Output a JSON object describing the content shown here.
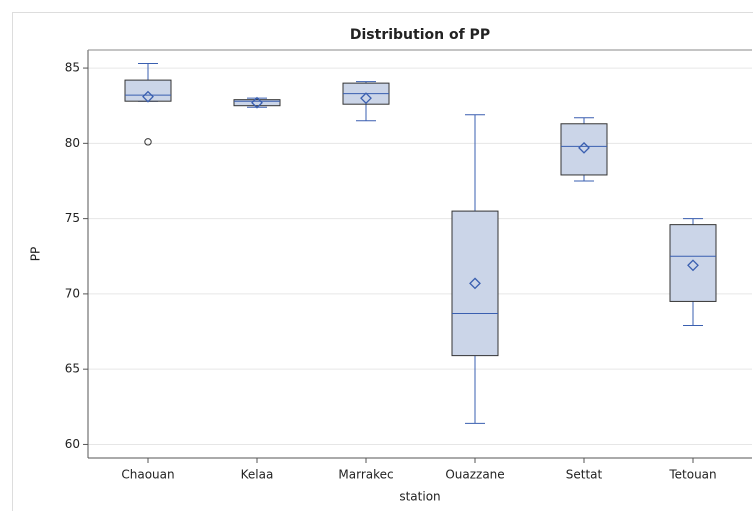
{
  "chart_data": {
    "type": "box",
    "title": "Distribution of PP",
    "x_label": "station",
    "y_label": "PP",
    "categories": [
      "Chaouan",
      "Kelaa",
      "Marrakec",
      "Ouazzane",
      "Settat",
      "Tetouan"
    ],
    "boxes": [
      {
        "whisker_low": 82.8,
        "q1": 82.8,
        "median": 83.2,
        "q3": 84.2,
        "whisker_high": 85.3,
        "mean": 83.1,
        "outliers": [
          80.1
        ]
      },
      {
        "whisker_low": 82.4,
        "q1": 82.5,
        "median": 82.8,
        "q3": 82.9,
        "whisker_high": 83.0,
        "mean": 82.7,
        "outliers": []
      },
      {
        "whisker_low": 81.5,
        "q1": 82.6,
        "median": 83.3,
        "q3": 84.0,
        "whisker_high": 84.1,
        "mean": 83.0,
        "outliers": []
      },
      {
        "whisker_low": 61.4,
        "q1": 65.9,
        "median": 68.7,
        "q3": 75.5,
        "whisker_high": 81.9,
        "mean": 70.7,
        "outliers": []
      },
      {
        "whisker_low": 77.5,
        "q1": 77.9,
        "median": 79.8,
        "q3": 81.3,
        "whisker_high": 81.7,
        "mean": 79.7,
        "outliers": []
      },
      {
        "whisker_low": 67.9,
        "q1": 69.5,
        "median": 72.5,
        "q3": 74.6,
        "whisker_high": 75.0,
        "mean": 71.9,
        "outliers": []
      }
    ],
    "box_color": "#cbd5e8",
    "line_color": "#3a5fb0",
    "ylim": [
      59.1,
      86.2
    ],
    "yticks": [
      60,
      65,
      70,
      75,
      80,
      85
    ],
    "grid": true
  }
}
